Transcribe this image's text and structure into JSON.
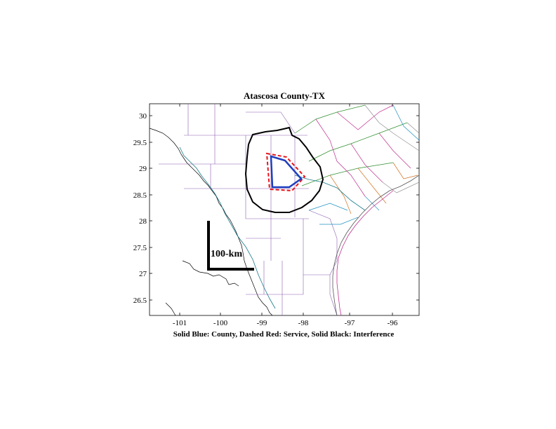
{
  "title": "Atascosa County-TX",
  "caption": "Solid Blue: County, Dashed Red: Service, Solid Black: Interference",
  "scale_bar_label": "100-km",
  "x_ticks": [
    "-101",
    "-100",
    "-99",
    "-98",
    "-97",
    "-96"
  ],
  "y_ticks": [
    "30",
    "29.5",
    "29",
    "28.5",
    "28",
    "27.5",
    "27",
    "26.5"
  ],
  "legend_colors": {
    "county": "#1f3fbf",
    "service": "#e8141a",
    "interference": "#000000"
  }
}
